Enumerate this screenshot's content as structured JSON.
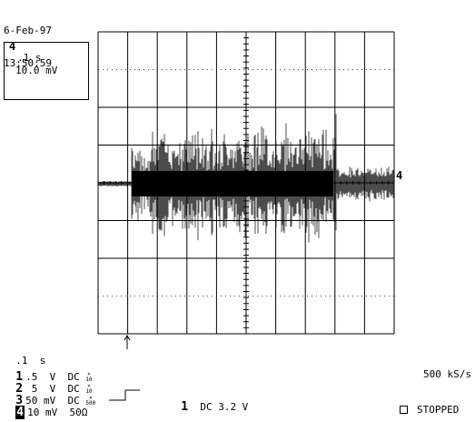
{
  "header": {
    "date": "6-Feb-97",
    "time": "13:50:59"
  },
  "zoom_box": {
    "channel": "4",
    "timebase": ".1 s",
    "volts": "10.0 mV"
  },
  "grid_marker": "4",
  "settings": {
    "timebase": ".1  s",
    "channels": [
      {
        "num": "1",
        "volts": ".5  V",
        "coupling": "DC",
        "probe_top": "×",
        "probe_bot": "10"
      },
      {
        "num": "2",
        "volts": " 5  V",
        "coupling": "DC",
        "probe_top": "×",
        "probe_bot": "10"
      },
      {
        "num": "3",
        "volts": "50 mV",
        "coupling": "DC",
        "probe_top": "×",
        "probe_bot": "500"
      },
      {
        "num": "4",
        "volts": "10 mV",
        "coupling": "50Ω",
        "probe_top": "",
        "probe_bot": ""
      }
    ]
  },
  "trigger": {
    "channel": "1",
    "label": "DC 3.2 V"
  },
  "sample_rate": "500 kS/s",
  "status": "STOPPED",
  "icons": {
    "trigger_edge": "rising-edge-icon",
    "trigger_pos": "up-arrow-icon",
    "stopped_box": "checkbox-icon"
  }
}
